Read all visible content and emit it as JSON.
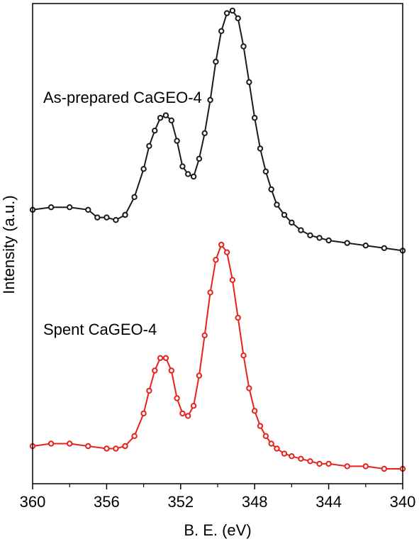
{
  "chart_data": {
    "type": "scatter",
    "xlabel": "B. E. (eV)",
    "ylabel": "Intensity (a.u.)",
    "xlim": [
      360,
      340
    ],
    "x_reversed": true,
    "x_ticks": [
      360,
      356,
      352,
      348,
      344,
      340
    ],
    "y_ticks_shown": false,
    "grid": false,
    "series": [
      {
        "name": "As-prepared CaGEO-4",
        "color": "#1a1a1a",
        "x": [
          360,
          359,
          358,
          357,
          356.5,
          356,
          355.5,
          355,
          354.5,
          354,
          353.7,
          353.4,
          353.1,
          352.8,
          352.5,
          352.2,
          351.9,
          351.6,
          351.3,
          351,
          350.7,
          350.4,
          350.1,
          349.8,
          349.5,
          349.2,
          348.9,
          348.6,
          348.3,
          348,
          347.7,
          347.4,
          347.1,
          346.8,
          346.4,
          346,
          345.5,
          345,
          344.5,
          344,
          343,
          342,
          341,
          340
        ],
        "y": [
          0.22,
          0.23,
          0.23,
          0.22,
          0.19,
          0.19,
          0.18,
          0.2,
          0.27,
          0.38,
          0.47,
          0.53,
          0.58,
          0.59,
          0.57,
          0.49,
          0.39,
          0.36,
          0.35,
          0.42,
          0.52,
          0.65,
          0.8,
          0.92,
          0.99,
          1.0,
          0.97,
          0.86,
          0.72,
          0.58,
          0.46,
          0.37,
          0.3,
          0.24,
          0.2,
          0.17,
          0.14,
          0.12,
          0.11,
          0.1,
          0.09,
          0.08,
          0.07,
          0.06
        ]
      },
      {
        "name": "Spent CaGEO-4",
        "color": "#e8211c",
        "x": [
          360,
          359,
          358,
          357,
          356,
          355.5,
          355,
          354.5,
          354,
          353.7,
          353.4,
          353.1,
          352.8,
          352.5,
          352.2,
          351.9,
          351.6,
          351.3,
          351,
          350.7,
          350.4,
          350.1,
          349.8,
          349.5,
          349.2,
          348.9,
          348.6,
          348.3,
          348,
          347.7,
          347.4,
          347.1,
          346.8,
          346.4,
          346,
          345.5,
          345,
          344.5,
          344,
          343,
          342,
          341,
          340
        ],
        "y": [
          0.2,
          0.21,
          0.21,
          0.2,
          0.19,
          0.19,
          0.2,
          0.24,
          0.33,
          0.42,
          0.5,
          0.55,
          0.55,
          0.5,
          0.39,
          0.33,
          0.32,
          0.36,
          0.48,
          0.64,
          0.81,
          0.94,
          1.0,
          0.97,
          0.86,
          0.71,
          0.56,
          0.43,
          0.34,
          0.28,
          0.24,
          0.21,
          0.19,
          0.17,
          0.16,
          0.15,
          0.14,
          0.13,
          0.13,
          0.12,
          0.12,
          0.11,
          0.11
        ]
      }
    ]
  }
}
